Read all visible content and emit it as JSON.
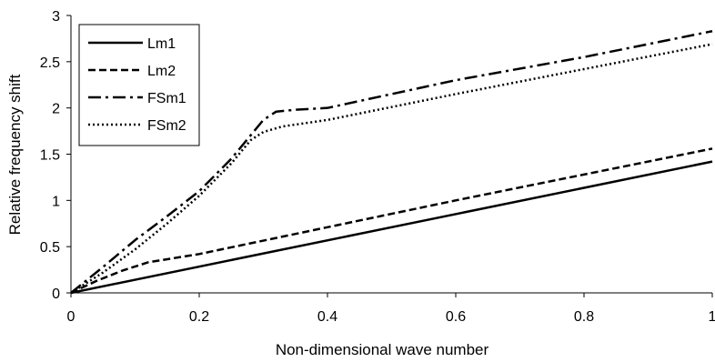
{
  "chart_data": {
    "type": "line",
    "title": "",
    "xlabel": "Non-dimensional wave number",
    "ylabel": "Relative frequency shift",
    "xlim": [
      0,
      1
    ],
    "ylim": [
      0,
      3
    ],
    "xticks": [
      "0",
      "0.2",
      "0.4",
      "0.6",
      "0.8",
      "1"
    ],
    "yticks": [
      "0",
      "0.5",
      "1",
      "1.5",
      "2",
      "2.5",
      "3"
    ],
    "grid": false,
    "legend_position": "top-left",
    "series": [
      {
        "name": "Lm1",
        "style": "solid",
        "x": [
          0,
          1
        ],
        "y": [
          0,
          1.42
        ]
      },
      {
        "name": "Lm2",
        "style": "dashed",
        "x": [
          0,
          0.04,
          0.08,
          0.12,
          0.2,
          0.4,
          0.6,
          0.8,
          1
        ],
        "y": [
          0,
          0.13,
          0.24,
          0.33,
          0.42,
          0.71,
          1.0,
          1.28,
          1.56
        ]
      },
      {
        "name": "FSm1",
        "style": "dashdot",
        "x": [
          0,
          0.05,
          0.1,
          0.15,
          0.2,
          0.25,
          0.3,
          0.32,
          0.35,
          0.4,
          0.6,
          0.8,
          1
        ],
        "y": [
          0,
          0.28,
          0.57,
          0.83,
          1.1,
          1.45,
          1.87,
          1.96,
          1.98,
          2.0,
          2.3,
          2.55,
          2.83
        ]
      },
      {
        "name": "FSm2",
        "style": "dotted",
        "x": [
          0,
          0.05,
          0.1,
          0.15,
          0.2,
          0.25,
          0.28,
          0.3,
          0.33,
          0.4,
          0.6,
          0.8,
          1
        ],
        "y": [
          0,
          0.22,
          0.47,
          0.75,
          1.05,
          1.4,
          1.65,
          1.74,
          1.8,
          1.87,
          2.15,
          2.42,
          2.69
        ]
      }
    ]
  }
}
